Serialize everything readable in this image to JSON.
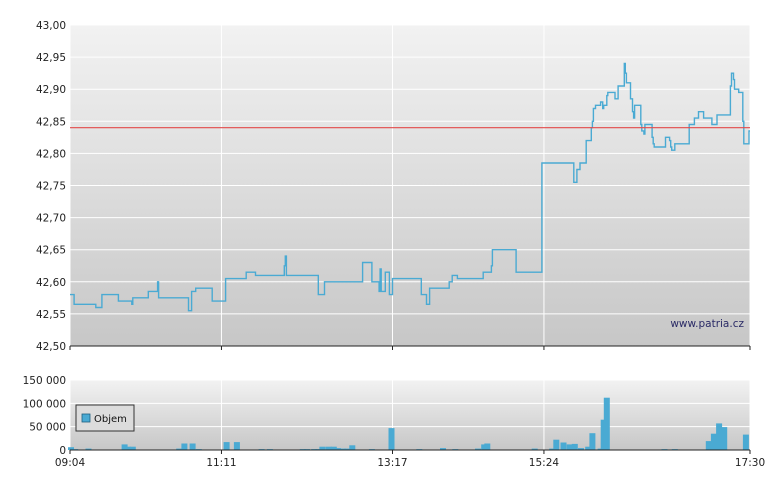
{
  "watermark": "www.patria.cz",
  "chart_data": [
    {
      "type": "line",
      "series": [
        {
          "color": "#4aaad3",
          "values": [
            [
              0,
              42.58
            ],
            [
              3,
              42.58
            ],
            [
              4,
              42.565
            ],
            [
              24,
              42.565
            ],
            [
              25,
              42.56
            ],
            [
              30,
              42.56
            ],
            [
              31,
              42.58
            ],
            [
              46,
              42.58
            ],
            [
              47,
              42.57
            ],
            [
              59,
              42.57
            ],
            [
              60,
              42.565
            ],
            [
              61,
              42.575
            ],
            [
              75,
              42.575
            ],
            [
              76,
              42.585
            ],
            [
              84,
              42.585
            ],
            [
              85,
              42.6
            ],
            [
              86,
              42.575
            ],
            [
              114,
              42.575
            ],
            [
              115,
              42.555
            ],
            [
              117,
              42.555
            ],
            [
              118,
              42.585
            ],
            [
              121,
              42.585
            ],
            [
              122,
              42.59
            ],
            [
              137,
              42.59
            ],
            [
              138,
              42.57
            ],
            [
              150,
              42.57
            ],
            [
              151,
              42.605
            ],
            [
              170,
              42.605
            ],
            [
              171,
              42.615
            ],
            [
              179,
              42.615
            ],
            [
              180,
              42.61
            ],
            [
              199,
              42.61
            ],
            [
              200,
              42.61
            ],
            [
              207,
              42.61
            ],
            [
              208,
              42.625
            ],
            [
              209,
              42.64
            ],
            [
              210,
              42.61
            ],
            [
              240,
              42.61
            ],
            [
              241,
              42.58
            ],
            [
              246,
              42.58
            ],
            [
              247,
              42.6
            ],
            [
              283,
              42.6
            ],
            [
              284,
              42.63
            ],
            [
              292,
              42.63
            ],
            [
              293,
              42.6
            ],
            [
              299,
              42.6
            ],
            [
              300,
              42.585
            ],
            [
              301,
              42.62
            ],
            [
              302,
              42.585
            ],
            [
              305,
              42.585
            ],
            [
              306,
              42.615
            ],
            [
              309,
              42.615
            ],
            [
              310,
              42.58
            ],
            [
              312,
              42.58
            ],
            [
              313,
              42.605
            ],
            [
              340,
              42.605
            ],
            [
              341,
              42.58
            ],
            [
              345,
              42.58
            ],
            [
              346,
              42.565
            ],
            [
              348,
              42.565
            ],
            [
              349,
              42.59
            ],
            [
              367,
              42.59
            ],
            [
              368,
              42.6
            ],
            [
              370,
              42.6
            ],
            [
              371,
              42.61
            ],
            [
              375,
              42.61
            ],
            [
              376,
              42.605
            ],
            [
              400,
              42.605
            ],
            [
              401,
              42.615
            ],
            [
              408,
              42.615
            ],
            [
              409,
              42.625
            ],
            [
              410,
              42.65
            ],
            [
              432,
              42.65
            ],
            [
              433,
              42.615
            ],
            [
              457,
              42.615
            ],
            [
              458,
              42.785
            ],
            [
              488,
              42.785
            ],
            [
              489,
              42.755
            ],
            [
              491,
              42.755
            ],
            [
              492,
              42.775
            ],
            [
              495,
              42.785
            ],
            [
              500,
              42.785
            ],
            [
              501,
              42.82
            ],
            [
              505,
              42.82
            ],
            [
              506,
              42.84
            ],
            [
              507,
              42.85
            ],
            [
              508,
              42.87
            ],
            [
              510,
              42.875
            ],
            [
              515,
              42.88
            ],
            [
              517,
              42.87
            ],
            [
              518,
              42.875
            ],
            [
              521,
              42.89
            ],
            [
              522,
              42.895
            ],
            [
              528,
              42.895
            ],
            [
              529,
              42.885
            ],
            [
              531,
              42.885
            ],
            [
              532,
              42.905
            ],
            [
              537,
              42.905
            ],
            [
              538,
              42.94
            ],
            [
              539,
              42.925
            ],
            [
              540,
              42.91
            ],
            [
              543,
              42.91
            ],
            [
              544,
              42.885
            ],
            [
              546,
              42.865
            ],
            [
              547,
              42.855
            ],
            [
              548,
              42.875
            ],
            [
              553,
              42.875
            ],
            [
              554,
              42.845
            ],
            [
              555,
              42.835
            ],
            [
              557,
              42.83
            ],
            [
              558,
              42.845
            ],
            [
              564,
              42.845
            ],
            [
              565,
              42.825
            ],
            [
              566,
              42.815
            ],
            [
              567,
              42.81
            ],
            [
              577,
              42.81
            ],
            [
              578,
              42.825
            ],
            [
              582,
              42.82
            ],
            [
              583,
              42.81
            ],
            [
              584,
              42.805
            ],
            [
              586,
              42.805
            ],
            [
              587,
              42.815
            ],
            [
              600,
              42.815
            ],
            [
              601,
              42.845
            ],
            [
              605,
              42.845
            ],
            [
              606,
              42.855
            ],
            [
              609,
              42.855
            ],
            [
              610,
              42.865
            ],
            [
              614,
              42.865
            ],
            [
              615,
              42.855
            ],
            [
              622,
              42.855
            ],
            [
              623,
              42.845
            ],
            [
              627,
              42.845
            ],
            [
              628,
              42.86
            ],
            [
              640,
              42.86
            ],
            [
              641,
              42.905
            ],
            [
              642,
              42.925
            ],
            [
              644,
              42.915
            ],
            [
              645,
              42.9
            ],
            [
              648,
              42.9
            ],
            [
              649,
              42.895
            ],
            [
              652,
              42.895
            ],
            [
              653,
              42.85
            ],
            [
              654,
              42.815
            ],
            [
              658,
              42.815
            ],
            [
              659,
              42.835
            ],
            [
              660,
              42.835
            ]
          ]
        },
        {
          "color": "#e34a4a",
          "values": [
            [
              0,
              42.84
            ],
            [
              660,
              42.84
            ]
          ]
        }
      ],
      "xlim": [
        0,
        660
      ],
      "ylim": [
        42.5,
        43.0
      ],
      "yticks": [
        42.5,
        42.55,
        42.6,
        42.65,
        42.7,
        42.75,
        42.8,
        42.85,
        42.9,
        42.95,
        43.0
      ],
      "ytick_labels": [
        "42,50",
        "42,55",
        "42,60",
        "42,65",
        "42,70",
        "42,75",
        "42,80",
        "42,85",
        "42,90",
        "42,95",
        "43,00"
      ],
      "xgrid_positions": [
        0,
        147,
        313,
        460,
        660
      ],
      "grid": true
    },
    {
      "type": "bar",
      "series": [
        {
          "name": "Objem",
          "color": "#4aaad3",
          "values": [
            [
              1,
              6000
            ],
            [
              5,
              2000
            ],
            [
              18,
              3000
            ],
            [
              53,
              12000
            ],
            [
              56,
              7000
            ],
            [
              61,
              7000
            ],
            [
              106,
              3000
            ],
            [
              111,
              14000
            ],
            [
              119,
              14000
            ],
            [
              125,
              2000
            ],
            [
              152,
              17000
            ],
            [
              162,
              17000
            ],
            [
              186,
              2000
            ],
            [
              194,
              2000
            ],
            [
              226,
              2000
            ],
            [
              230,
              2000
            ],
            [
              237,
              2000
            ],
            [
              241,
              2000
            ],
            [
              245,
              7000
            ],
            [
              251,
              7000
            ],
            [
              256,
              7000
            ],
            [
              260,
              4000
            ],
            [
              265,
              3000
            ],
            [
              269,
              3000
            ],
            [
              274,
              10000
            ],
            [
              293,
              2000
            ],
            [
              312,
              47000
            ],
            [
              339,
              2000
            ],
            [
              362,
              4000
            ],
            [
              374,
              2000
            ],
            [
              396,
              3000
            ],
            [
              402,
              12000
            ],
            [
              405,
              14000
            ],
            [
              451,
              3000
            ],
            [
              468,
              3000
            ],
            [
              472,
              22000
            ],
            [
              479,
              16000
            ],
            [
              485,
              12000
            ],
            [
              490,
              13000
            ],
            [
              496,
              4000
            ],
            [
              503,
              7000
            ],
            [
              507,
              36000
            ],
            [
              515,
              3000
            ],
            [
              518,
              65000
            ],
            [
              521,
              112000
            ],
            [
              577,
              2000
            ],
            [
              587,
              2000
            ],
            [
              620,
              19000
            ],
            [
              625,
              35000
            ],
            [
              630,
              57000
            ],
            [
              635,
              49000
            ],
            [
              656,
              33000
            ]
          ]
        }
      ],
      "xlim": [
        0,
        660
      ],
      "ylim": [
        0,
        150000
      ],
      "yticks": [
        0,
        50000,
        100000,
        150000
      ],
      "ytick_labels": [
        "0",
        "50 000",
        "100 000",
        "150 000"
      ],
      "x_tick_labels": [
        "09:04",
        "11:11",
        "13:17",
        "15:24",
        "17:30"
      ],
      "x_tick_positions": [
        0,
        147,
        313,
        460,
        660
      ],
      "legend": "top-left",
      "grid": true
    }
  ]
}
